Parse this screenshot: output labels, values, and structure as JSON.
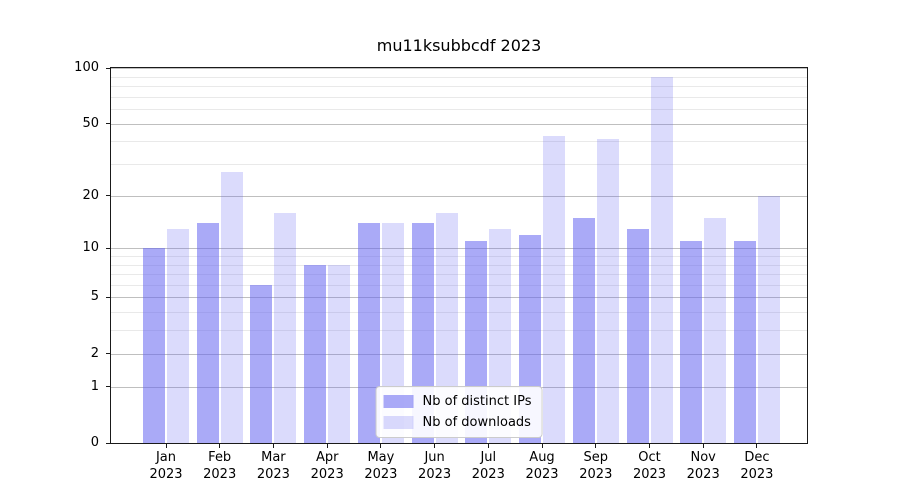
{
  "title": "mu11ksubbcdf 2023",
  "chart_data": {
    "type": "bar",
    "title": "mu11ksubbcdf 2023",
    "categories": [
      "Jan 2023",
      "Feb 2023",
      "Mar 2023",
      "Apr 2023",
      "May 2023",
      "Jun 2023",
      "Jul 2023",
      "Aug 2023",
      "Sep 2023",
      "Oct 2023",
      "Nov 2023",
      "Dec 2023"
    ],
    "category_line1": [
      "Jan",
      "Feb",
      "Mar",
      "Apr",
      "May",
      "Jun",
      "Jul",
      "Aug",
      "Sep",
      "Oct",
      "Nov",
      "Dec"
    ],
    "category_line2": "2023",
    "series": [
      {
        "name": "Nb of distinct IPs",
        "color": "rgba(100,100,240,0.55)",
        "values": [
          10,
          14,
          6,
          8,
          14,
          14,
          11,
          12,
          15,
          13,
          11,
          11
        ]
      },
      {
        "name": "Nb of downloads",
        "color": "rgba(100,100,240,0.23)",
        "values": [
          13,
          27,
          16,
          8,
          14,
          16,
          13,
          43,
          41,
          90,
          15,
          20
        ]
      }
    ],
    "xlabel": "",
    "ylabel": "",
    "yscale": "log1p",
    "ylim": [
      0,
      100
    ],
    "yticks": [
      0,
      1,
      2,
      5,
      10,
      20,
      50,
      100
    ],
    "yticks_minor": [
      3,
      4,
      6,
      7,
      8,
      9,
      30,
      40,
      60,
      70,
      80,
      90
    ],
    "grid": true,
    "legend_position": "lower center"
  },
  "colors": {
    "spine": "#1a1a1a",
    "grid_major": "#bfbfbf",
    "grid_minor": "#e9e9e9",
    "text": "#000000",
    "legend_border": "#cccccc"
  }
}
